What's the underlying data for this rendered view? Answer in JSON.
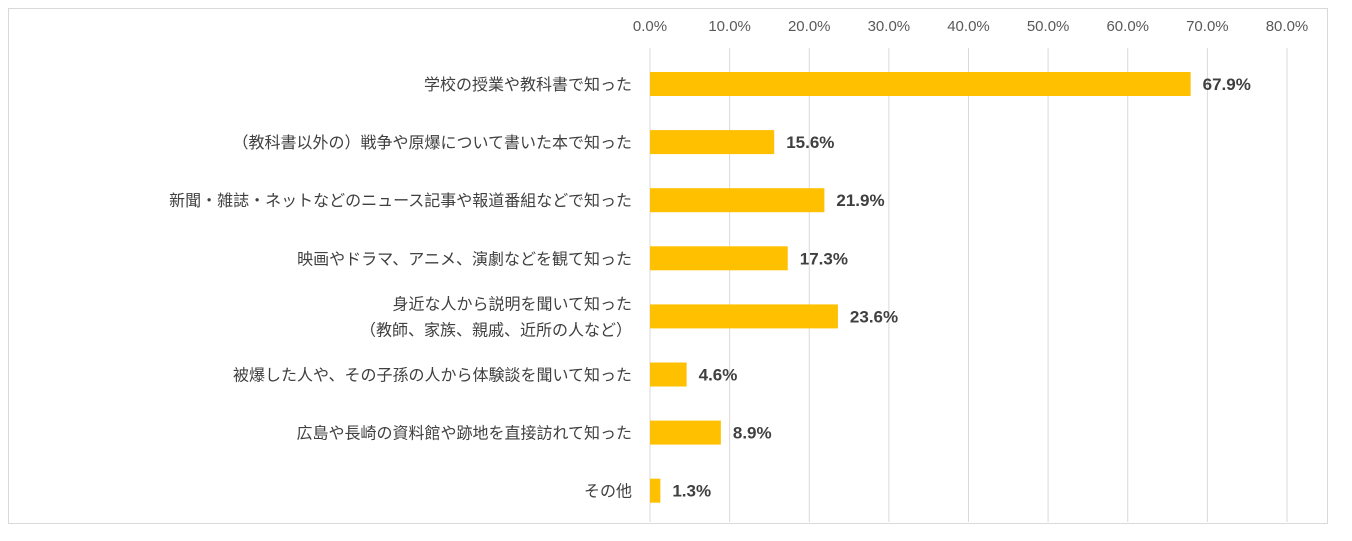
{
  "chart_data": {
    "type": "bar",
    "orientation": "horizontal",
    "categories": [
      [
        "学校の授業や教科書で知った"
      ],
      [
        "（教科書以外の）戦争や原爆について書いた本で知った"
      ],
      [
        "新聞・雑誌・ネットなどのニュース記事や報道番組などで知った"
      ],
      [
        "映画やドラマ、アニメ、演劇などを観て知った"
      ],
      [
        "身近な人から説明を聞いて知った",
        "（教師、家族、親戚、近所の人など）"
      ],
      [
        "被爆した人や、その子孫の人から体験談を聞いて知った"
      ],
      [
        "広島や長崎の資料館や跡地を直接訪れて知った"
      ],
      [
        "その他"
      ]
    ],
    "values": [
      67.9,
      15.6,
      21.9,
      17.3,
      23.6,
      4.6,
      8.9,
      1.3
    ],
    "value_labels": [
      "67.9%",
      "15.6%",
      "21.9%",
      "17.3%",
      "23.6%",
      "4.6%",
      "8.9%",
      "1.3%"
    ],
    "xlim": [
      0,
      80
    ],
    "ticks": [
      0,
      10,
      20,
      30,
      40,
      50,
      60,
      70,
      80
    ],
    "tick_labels": [
      "0.0%",
      "10.0%",
      "20.0%",
      "30.0%",
      "40.0%",
      "50.0%",
      "60.0%",
      "70.0%",
      "80.0%"
    ],
    "axis_position": "top",
    "grid": true,
    "legend": "none",
    "colors": {
      "bar": "#FFC000",
      "grid": "#d9d9d9"
    }
  }
}
